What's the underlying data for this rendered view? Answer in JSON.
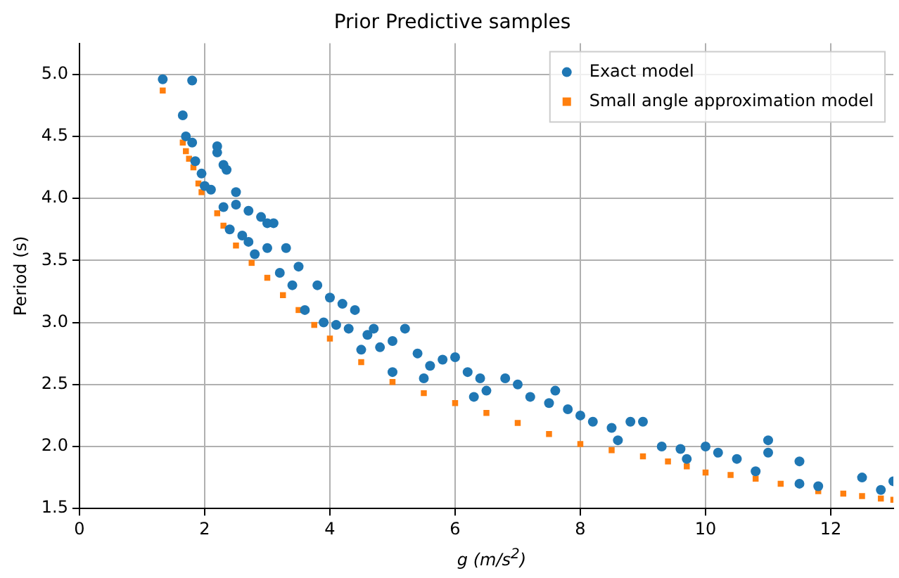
{
  "chart_data": {
    "type": "scatter",
    "title": "Prior Predictive samples",
    "xlabel": "g (m/s$^{2}$)",
    "ylabel": "Period (s)",
    "xlim": [
      0,
      13
    ],
    "xticks": [
      0,
      2,
      4,
      6,
      8,
      10,
      12
    ],
    "ylim": [
      1.5,
      5.25
    ],
    "yticks": [
      1.5,
      {
        "value": 2,
        "label": "2.0"
      },
      2.5,
      {
        "value": 3,
        "label": "3.0"
      },
      3.5,
      {
        "value": 4,
        "label": "4.0"
      },
      4.5,
      {
        "value": 5,
        "label": "5.0"
      }
    ],
    "grid": true,
    "legend": "top right",
    "series": [
      {
        "name": "Exact model",
        "color": "#1f77b4",
        "marker": "circle",
        "x": [
          1.33,
          1.8,
          1.65,
          1.7,
          1.8,
          1.85,
          1.95,
          2.1,
          2.2,
          2.2,
          2.3,
          2.35,
          2.0,
          2.5,
          2.3,
          2.5,
          2.7,
          2.9,
          3.1,
          2.4,
          2.7,
          2.8,
          3.0,
          3.3,
          3.5,
          3.2,
          3.8,
          4.0,
          4.2,
          3.6,
          3.9,
          4.3,
          4.6,
          5.0,
          4.5,
          4.8,
          5.2,
          5.4,
          5.6,
          5.8,
          6.0,
          6.2,
          6.4,
          6.8,
          7.0,
          5.5,
          6.5,
          7.2,
          7.5,
          7.8,
          8.0,
          8.2,
          8.5,
          8.8,
          9.0,
          7.6,
          8.6,
          9.3,
          9.6,
          10.0,
          10.2,
          10.5,
          11.0,
          11.5,
          11.0,
          11.8,
          12.5,
          12.8,
          13.0,
          11.5,
          10.8,
          9.7,
          6.3,
          5.0,
          3.4,
          3.0,
          2.6,
          4.1,
          4.4,
          4.7
        ],
        "values": [
          4.96,
          4.95,
          4.67,
          4.5,
          4.45,
          4.3,
          4.2,
          4.07,
          4.42,
          4.37,
          4.27,
          4.23,
          4.1,
          4.05,
          3.93,
          3.95,
          3.9,
          3.85,
          3.8,
          3.75,
          3.65,
          3.55,
          3.6,
          3.6,
          3.45,
          3.4,
          3.3,
          3.2,
          3.15,
          3.1,
          3.0,
          2.95,
          2.9,
          2.85,
          2.78,
          2.8,
          2.95,
          2.75,
          2.65,
          2.7,
          2.72,
          2.6,
          2.55,
          2.55,
          2.5,
          2.55,
          2.45,
          2.4,
          2.35,
          2.3,
          2.25,
          2.2,
          2.15,
          2.2,
          2.2,
          2.45,
          2.05,
          2.0,
          1.98,
          2.0,
          1.95,
          1.9,
          1.95,
          1.88,
          2.05,
          1.68,
          1.75,
          1.65,
          1.72,
          1.7,
          1.8,
          1.9,
          2.4,
          2.6,
          3.3,
          3.8,
          3.7,
          2.98,
          3.1,
          2.95
        ]
      },
      {
        "name": "Small angle approximation model",
        "color": "#ff7f0e",
        "marker": "square",
        "x": [
          1.33,
          1.65,
          1.7,
          1.75,
          1.82,
          1.9,
          1.95,
          2.2,
          2.3,
          2.5,
          2.75,
          3.0,
          3.25,
          3.5,
          3.75,
          4.0,
          4.5,
          5.0,
          5.5,
          6.0,
          6.5,
          7.0,
          7.5,
          8.0,
          8.5,
          9.0,
          9.4,
          9.7,
          10.0,
          10.4,
          10.8,
          11.2,
          11.8,
          12.2,
          12.5,
          12.8,
          13.0
        ],
        "values": [
          4.87,
          4.45,
          4.38,
          4.32,
          4.25,
          4.12,
          4.05,
          3.88,
          3.78,
          3.62,
          3.48,
          3.36,
          3.22,
          3.1,
          2.98,
          2.87,
          2.68,
          2.52,
          2.43,
          2.35,
          2.27,
          2.19,
          2.1,
          2.02,
          1.97,
          1.92,
          1.88,
          1.84,
          1.79,
          1.77,
          1.74,
          1.7,
          1.64,
          1.62,
          1.6,
          1.58,
          1.57
        ]
      }
    ]
  }
}
